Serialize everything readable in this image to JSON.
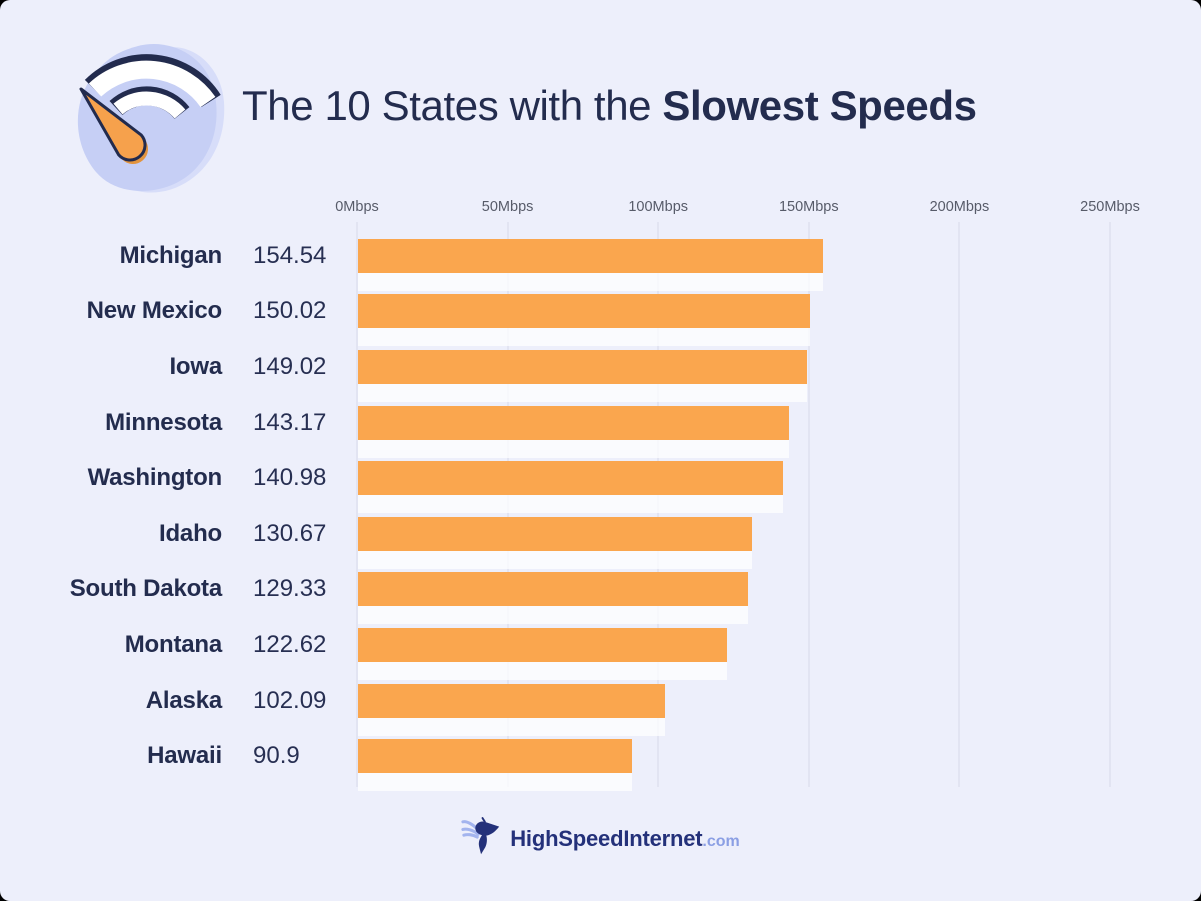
{
  "page": {
    "background": "#edeffb",
    "corner_background": "#000000"
  },
  "header": {
    "title_prefix": "The 10 States with the ",
    "title_emphasis": "Slowest Speeds",
    "logo_icon": "wifi-speedometer-icon"
  },
  "chart_data": {
    "type": "bar",
    "orientation": "horizontal",
    "title": "The 10 States with the Slowest Speeds",
    "unit": "Mbps",
    "categories": [
      "Michigan",
      "New Mexico",
      "Iowa",
      "Minnesota",
      "Washington",
      "Idaho",
      "South Dakota",
      "Montana",
      "Alaska",
      "Hawaii"
    ],
    "values": [
      154.54,
      150.02,
      149.02,
      143.17,
      140.98,
      130.67,
      129.33,
      122.62,
      102.09,
      90.9
    ],
    "value_labels": [
      "154.54",
      "150.02",
      "149.02",
      "143.17",
      "140.98",
      "130.67",
      "129.33",
      "122.62",
      "102.09",
      "90.9"
    ],
    "x_ticks": [
      "0Mbps",
      "50Mbps",
      "100Mbps",
      "150Mbps",
      "200Mbps",
      "250Mbps"
    ],
    "xlim": [
      0,
      250
    ],
    "grid": true,
    "legend": false,
    "bar_color": "#faa64e"
  },
  "footer": {
    "brand": "HighSpeedInternet",
    "suffix": ".com",
    "logo_icon": "hummingbird-icon"
  },
  "colors": {
    "navy_text": "#232c4e",
    "tick_gray": "#575b69",
    "gridline": "#d7dae8",
    "bar_orange": "#faa64e",
    "bar_glow_white": "rgba(255,255,255,0.72)",
    "logo_blob": "#c6cff5",
    "logo_blob_light": "#d7ddf9",
    "logo_needle_orange": "#f6a14c",
    "footer_navy": "#24317a",
    "footer_periwinkle": "#8b9fe4"
  }
}
